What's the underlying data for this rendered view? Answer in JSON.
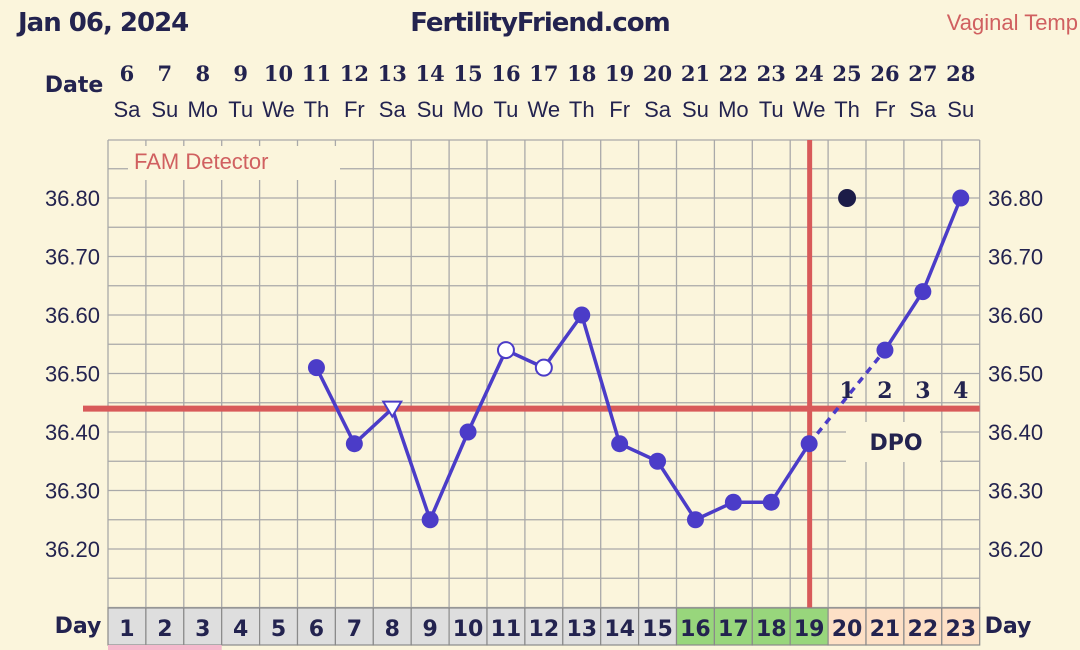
{
  "header": {
    "date": "Jan 06, 2024",
    "site": "FertilityFriend.com",
    "temp_type": "Vaginal Temp"
  },
  "labels": {
    "date_label": "Date",
    "day_label": "Day",
    "fam_detector": "FAM Detector",
    "dpo_label": "DPO"
  },
  "colors": {
    "background": "#fbf5dc",
    "line": "#4b3cc8",
    "coverline": "#d85a5a",
    "text": "#23234f",
    "fertile_bg": "#98d67c",
    "luteal_bg": "#fde0c6",
    "period_bg": "#dedede"
  },
  "chart_data": {
    "type": "line",
    "ylim": [
      36.1,
      36.9
    ],
    "yticks": [
      "36.20",
      "36.30",
      "36.40",
      "36.50",
      "36.60",
      "36.70",
      "36.80"
    ],
    "coverline": 36.44,
    "ovulation_cycle_day": 19,
    "dates": [
      {
        "num": "6",
        "dow": "Sa"
      },
      {
        "num": "7",
        "dow": "Su"
      },
      {
        "num": "8",
        "dow": "Mo"
      },
      {
        "num": "9",
        "dow": "Tu"
      },
      {
        "num": "10",
        "dow": "We"
      },
      {
        "num": "11",
        "dow": "Th"
      },
      {
        "num": "12",
        "dow": "Fr"
      },
      {
        "num": "13",
        "dow": "Sa"
      },
      {
        "num": "14",
        "dow": "Su"
      },
      {
        "num": "15",
        "dow": "Mo"
      },
      {
        "num": "16",
        "dow": "Tu"
      },
      {
        "num": "17",
        "dow": "We"
      },
      {
        "num": "18",
        "dow": "Th"
      },
      {
        "num": "19",
        "dow": "Fr"
      },
      {
        "num": "20",
        "dow": "Sa"
      },
      {
        "num": "21",
        "dow": "Su"
      },
      {
        "num": "22",
        "dow": "Mo"
      },
      {
        "num": "23",
        "dow": "Tu"
      },
      {
        "num": "24",
        "dow": "We"
      },
      {
        "num": "25",
        "dow": "Th"
      },
      {
        "num": "26",
        "dow": "Fr"
      },
      {
        "num": "27",
        "dow": "Sa"
      },
      {
        "num": "28",
        "dow": "Su"
      }
    ],
    "cycle_days": [
      {
        "day": "1",
        "phase": "period"
      },
      {
        "day": "2",
        "phase": "period"
      },
      {
        "day": "3",
        "phase": "period"
      },
      {
        "day": "4",
        "phase": "none"
      },
      {
        "day": "5",
        "phase": "none"
      },
      {
        "day": "6",
        "phase": "none"
      },
      {
        "day": "7",
        "phase": "none"
      },
      {
        "day": "8",
        "phase": "none"
      },
      {
        "day": "9",
        "phase": "none"
      },
      {
        "day": "10",
        "phase": "none"
      },
      {
        "day": "11",
        "phase": "none"
      },
      {
        "day": "12",
        "phase": "none"
      },
      {
        "day": "13",
        "phase": "none"
      },
      {
        "day": "14",
        "phase": "none"
      },
      {
        "day": "15",
        "phase": "none"
      },
      {
        "day": "16",
        "phase": "fertile"
      },
      {
        "day": "17",
        "phase": "fertile"
      },
      {
        "day": "18",
        "phase": "fertile"
      },
      {
        "day": "19",
        "phase": "fertile"
      },
      {
        "day": "20",
        "phase": "luteal"
      },
      {
        "day": "21",
        "phase": "luteal"
      },
      {
        "day": "22",
        "phase": "luteal"
      },
      {
        "day": "23",
        "phase": "luteal"
      }
    ],
    "temps": [
      {
        "day": 6,
        "temp": 36.51,
        "marker": "filled"
      },
      {
        "day": 7,
        "temp": 36.38,
        "marker": "filled"
      },
      {
        "day": 8,
        "temp": 36.44,
        "marker": "triangle"
      },
      {
        "day": 9,
        "temp": 36.25,
        "marker": "filled"
      },
      {
        "day": 10,
        "temp": 36.4,
        "marker": "filled"
      },
      {
        "day": 11,
        "temp": 36.54,
        "marker": "open"
      },
      {
        "day": 12,
        "temp": 36.51,
        "marker": "open"
      },
      {
        "day": 13,
        "temp": 36.6,
        "marker": "filled"
      },
      {
        "day": 14,
        "temp": 36.38,
        "marker": "filled"
      },
      {
        "day": 15,
        "temp": 36.35,
        "marker": "filled"
      },
      {
        "day": 16,
        "temp": 36.25,
        "marker": "filled"
      },
      {
        "day": 17,
        "temp": 36.28,
        "marker": "filled"
      },
      {
        "day": 18,
        "temp": 36.28,
        "marker": "filled"
      },
      {
        "day": 19,
        "temp": 36.38,
        "marker": "filled"
      },
      {
        "day": 21,
        "temp": 36.54,
        "marker": "filled"
      },
      {
        "day": 22,
        "temp": 36.64,
        "marker": "filled"
      },
      {
        "day": 23,
        "temp": 36.8,
        "marker": "filled"
      }
    ],
    "dashed_segment": [
      19,
      21
    ],
    "dark_dot": {
      "day": 20,
      "temp": 36.8
    },
    "dpo": [
      {
        "day": 20,
        "label": "1"
      },
      {
        "day": 21,
        "label": "2"
      },
      {
        "day": 22,
        "label": "3"
      },
      {
        "day": 23,
        "label": "4"
      }
    ]
  }
}
